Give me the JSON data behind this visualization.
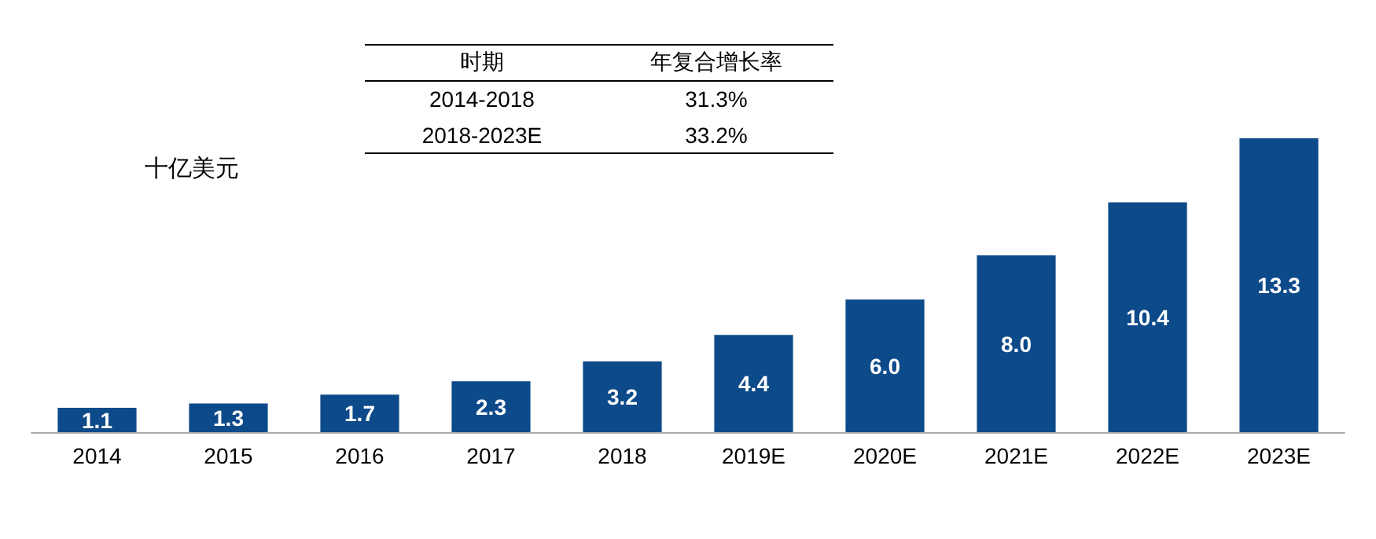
{
  "chart_data": {
    "type": "bar",
    "ylabel": "十亿美元",
    "categories": [
      "2014",
      "2015",
      "2016",
      "2017",
      "2018",
      "2019E",
      "2020E",
      "2021E",
      "2022E",
      "2023E"
    ],
    "values": [
      1.1,
      1.3,
      1.7,
      2.3,
      3.2,
      4.4,
      6.0,
      8.0,
      10.4,
      13.3
    ],
    "value_labels": [
      "1.1",
      "1.3",
      "1.7",
      "2.3",
      "3.2",
      "4.4",
      "6.0",
      "8.0",
      "10.4",
      "13.3"
    ],
    "color": "#0d4a8a",
    "annotations": [
      "时期",
      "年复合增长率",
      "2014-2018",
      "31.3%",
      "2018-2023E",
      "33.2%"
    ]
  }
}
